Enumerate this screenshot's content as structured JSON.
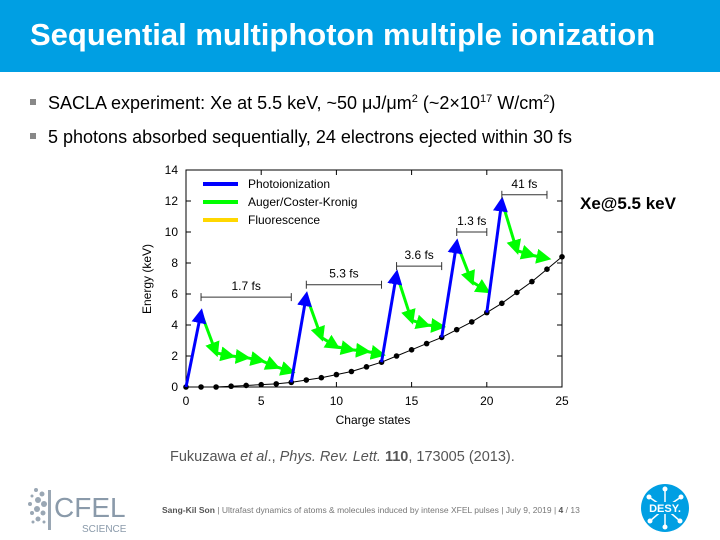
{
  "slide": {
    "title": "Sequential multiphoton multiple ionization",
    "bullet1": {
      "pre": "SACLA experiment: Xe at 5.5 keV, ~50 μJ/μm",
      "sup1": "2",
      "mid": " (~2×10",
      "sup2": "17",
      "mid2": " W/cm",
      "sup3": "2",
      "post": ")"
    },
    "bullet2": "5 photons absorbed sequentially, 24 electrons ejected within 30 fs",
    "xe_label": "Xe@5.5 keV",
    "citation": {
      "authors": "Fukuzawa ",
      "etal": "et al",
      "sep": "., ",
      "journal": "Phys. Rev. Lett.",
      "volume": "110",
      "rest": ", 173005 (2013)."
    },
    "footer": {
      "author": "Sang-Kil Son",
      "text": " | Ultrafast dynamics of atoms & molecules induced by intense XFEL pulses | July 9, 2019 | ",
      "page": "4",
      "total": " / 13"
    },
    "logos": {
      "cfel": "CFEL",
      "cfel_sub": "SCIENCE",
      "desy": "DESY."
    }
  },
  "chart_data": {
    "type": "line",
    "xlabel": "Charge states",
    "ylabel": "Energy (keV)",
    "xlim": [
      0,
      25
    ],
    "ylim": [
      0,
      14
    ],
    "xticks": [
      0,
      5,
      10,
      15,
      20,
      25
    ],
    "yticks": [
      0,
      2,
      4,
      6,
      8,
      10,
      12,
      14
    ],
    "legend": [
      "Photoionization",
      "Auger/Coster-Kronig",
      "Fluorescence"
    ],
    "colors": {
      "photo": "#0000ff",
      "auger": "#00ff00",
      "fluor": "#ffd700"
    },
    "energy_curve": {
      "x": [
        0,
        1,
        2,
        3,
        4,
        5,
        6,
        7,
        8,
        9,
        10,
        11,
        12,
        13,
        14,
        15,
        16,
        17,
        18,
        19,
        20,
        21,
        22,
        23,
        24,
        25
      ],
      "y": [
        0,
        0,
        0,
        0.05,
        0.1,
        0.15,
        0.2,
        0.3,
        0.45,
        0.6,
        0.8,
        1.0,
        1.3,
        1.6,
        2.0,
        2.4,
        2.8,
        3.2,
        3.7,
        4.2,
        4.8,
        5.4,
        6.1,
        6.8,
        7.6,
        8.4
      ]
    },
    "photoionization": [
      {
        "from": [
          0,
          0
        ],
        "to": [
          1,
          4.8
        ]
      },
      {
        "from": [
          7,
          0.3
        ],
        "to": [
          8,
          5.9
        ]
      },
      {
        "from": [
          13,
          1.6
        ],
        "to": [
          14,
          7.3
        ]
      },
      {
        "from": [
          17,
          3.2
        ],
        "to": [
          18,
          9.3
        ]
      },
      {
        "from": [
          20,
          4.8
        ],
        "to": [
          21,
          12.0
        ]
      }
    ],
    "auger": [
      {
        "from": [
          1,
          4.8
        ],
        "to": [
          2,
          2.2
        ]
      },
      {
        "from": [
          2,
          2.2
        ],
        "to": [
          3,
          2.0
        ]
      },
      {
        "from": [
          3,
          2.0
        ],
        "to": [
          4,
          1.9
        ]
      },
      {
        "from": [
          4,
          1.9
        ],
        "to": [
          5,
          1.7
        ]
      },
      {
        "from": [
          5,
          1.7
        ],
        "to": [
          6,
          1.3
        ]
      },
      {
        "from": [
          6,
          1.3
        ],
        "to": [
          7,
          1.0
        ]
      },
      {
        "from": [
          8,
          5.9
        ],
        "to": [
          9,
          3.2
        ]
      },
      {
        "from": [
          9,
          3.2
        ],
        "to": [
          10,
          2.6
        ]
      },
      {
        "from": [
          10,
          2.6
        ],
        "to": [
          11,
          2.4
        ]
      },
      {
        "from": [
          11,
          2.4
        ],
        "to": [
          12,
          2.3
        ]
      },
      {
        "from": [
          12,
          2.3
        ],
        "to": [
          13,
          2.1
        ]
      },
      {
        "from": [
          14,
          7.3
        ],
        "to": [
          15,
          4.3
        ]
      },
      {
        "from": [
          15,
          4.3
        ],
        "to": [
          16,
          4.0
        ]
      },
      {
        "from": [
          16,
          4.0
        ],
        "to": [
          17,
          3.9
        ]
      },
      {
        "from": [
          18,
          9.3
        ],
        "to": [
          19,
          6.8
        ]
      },
      {
        "from": [
          19,
          6.8
        ],
        "to": [
          20,
          6.2
        ]
      },
      {
        "from": [
          21,
          12.0
        ],
        "to": [
          22,
          8.8
        ]
      },
      {
        "from": [
          22,
          8.8
        ],
        "to": [
          23,
          8.5
        ]
      },
      {
        "from": [
          23,
          8.5
        ],
        "to": [
          24,
          8.3
        ]
      }
    ],
    "time_annotations": [
      {
        "label": "1.7 fs",
        "x1": 1,
        "x2": 7,
        "y": 5.8
      },
      {
        "label": "5.3 fs",
        "x1": 8,
        "x2": 13,
        "y": 6.6
      },
      {
        "label": "3.6 fs",
        "x1": 14,
        "x2": 17,
        "y": 7.8
      },
      {
        "label": "1.3 fs",
        "x1": 18,
        "x2": 20,
        "y": 10.0
      },
      {
        "label": "41 fs",
        "x1": 21,
        "x2": 24,
        "y": 12.4
      }
    ]
  }
}
